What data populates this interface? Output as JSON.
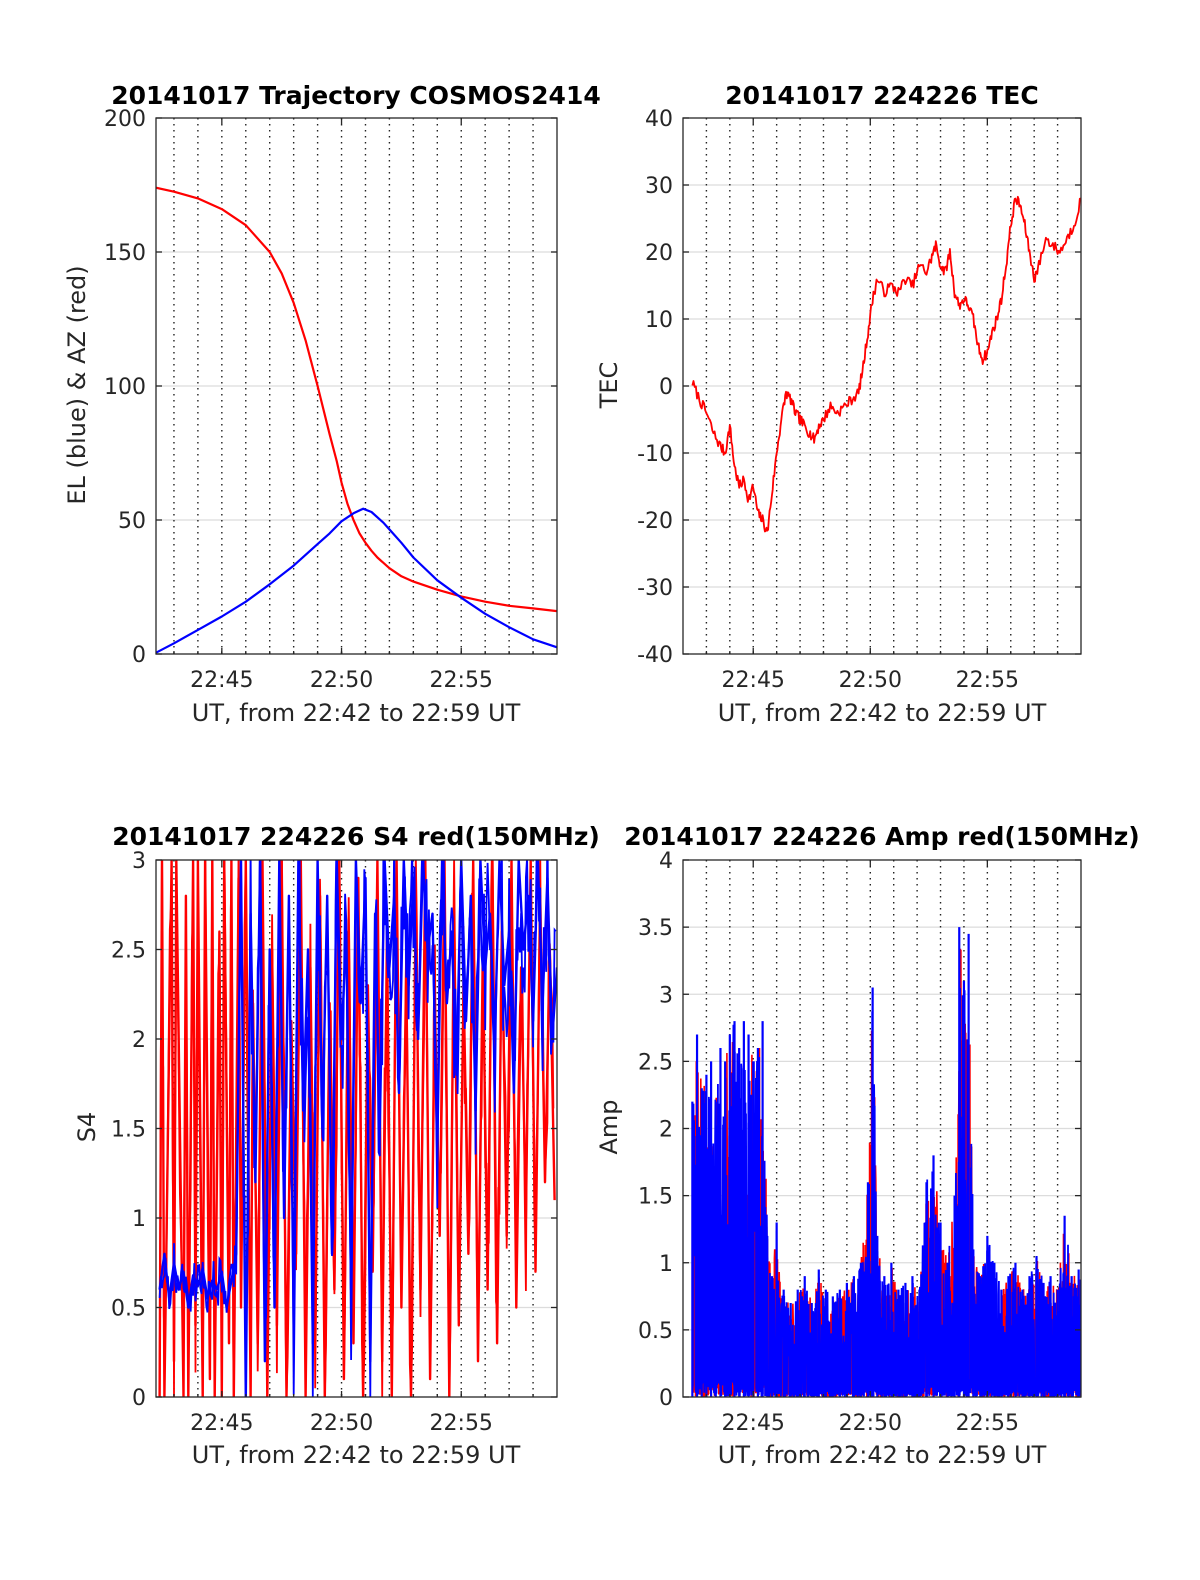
{
  "figure": {
    "x_axis_label": "UT, from 22:42 to 22:59 UT",
    "x_tick_labels": [
      "22:45",
      "22:50",
      "22:55"
    ]
  },
  "colors": {
    "red": "#ff0000",
    "blue": "#0000ff"
  },
  "chart_data": [
    {
      "id": "trajectory",
      "type": "line",
      "title": "20141017 Trajectory COSMOS2414",
      "xlabel": "UT, from 22:42 to 22:59 UT",
      "ylabel": "EL (blue) & AZ (red)",
      "x_unit": "minutes after 22:00 UT",
      "xlim": [
        42.25,
        59.0
      ],
      "ylim": [
        0,
        200
      ],
      "yticks": [
        0,
        50,
        100,
        150,
        200
      ],
      "ytick_labels": [
        "0",
        "50",
        "100",
        "150",
        "200"
      ],
      "xticks": [
        45,
        50,
        55
      ],
      "xtick_labels": [
        "22:45",
        "22:50",
        "22:55"
      ],
      "grid": true,
      "series": [
        {
          "color": "red",
          "x": [
            42.25,
            43,
            44,
            45,
            46,
            47,
            47.5,
            48,
            48.5,
            49,
            49.5,
            49.8,
            50,
            50.25,
            50.5,
            50.75,
            51,
            51.25,
            51.5,
            52,
            52.5,
            53,
            54,
            55,
            56,
            57,
            58,
            59
          ],
          "y": [
            174,
            172.5,
            170,
            166,
            160,
            150,
            142,
            131,
            117,
            100,
            82,
            72,
            64,
            56,
            50,
            45,
            41.5,
            38.5,
            36,
            32,
            29,
            27,
            24,
            21.5,
            19.5,
            18,
            17,
            16
          ]
        },
        {
          "color": "blue",
          "x": [
            42.25,
            43,
            44,
            45,
            46,
            47,
            48,
            49,
            49.5,
            50,
            50.5,
            50.9,
            51.25,
            51.75,
            52,
            52.5,
            53,
            54,
            55,
            56,
            57,
            58,
            59
          ],
          "y": [
            0.5,
            4,
            9,
            14,
            19.5,
            26,
            33,
            41,
            45,
            49.5,
            52.5,
            54.2,
            53,
            49,
            46.5,
            41.5,
            36,
            27.5,
            21,
            15,
            10,
            5.5,
            2.5
          ]
        }
      ]
    },
    {
      "id": "tec",
      "type": "line",
      "title": "20141017 224226 TEC",
      "xlabel": "UT, from 22:42 to 22:59 UT",
      "ylabel": "TEC",
      "x_unit": "minutes after 22:00 UT",
      "xlim": [
        42.0,
        59.0
      ],
      "ylim": [
        -40,
        40
      ],
      "yticks": [
        -40,
        -30,
        -20,
        -10,
        0,
        10,
        20,
        30,
        40
      ],
      "ytick_labels": [
        "-40",
        "-30",
        "-20",
        "-10",
        "0",
        "10",
        "20",
        "30",
        "40"
      ],
      "xticks": [
        45,
        50,
        55
      ],
      "xtick_labels": [
        "22:45",
        "22:50",
        "22:55"
      ],
      "grid": true,
      "series": [
        {
          "color": "red",
          "x": [
            42.4,
            42.7,
            43,
            43.3,
            43.6,
            43.8,
            44,
            44.2,
            44.4,
            44.6,
            44.8,
            45,
            45.2,
            45.4,
            45.6,
            45.8,
            46,
            46.2,
            46.4,
            46.6,
            46.8,
            47,
            47.2,
            47.4,
            47.6,
            47.8,
            48,
            48.3,
            48.6,
            48.9,
            49.2,
            49.5,
            49.7,
            49.9,
            50.1,
            50.3,
            50.6,
            50.9,
            51.2,
            51.5,
            51.8,
            52.1,
            52.4,
            52.6,
            52.8,
            53,
            53.2,
            53.4,
            53.6,
            53.8,
            54,
            54.2,
            54.4,
            54.6,
            54.8,
            55,
            55.2,
            55.4,
            55.6,
            55.8,
            56,
            56.2,
            56.4,
            56.6,
            56.8,
            57,
            57.2,
            57.5,
            57.8,
            58.1,
            58.4,
            58.7,
            59
          ],
          "y": [
            0.5,
            -2,
            -4,
            -7,
            -9,
            -10,
            -6,
            -12,
            -15,
            -14,
            -17,
            -15,
            -19,
            -20,
            -22,
            -16,
            -10,
            -5,
            -1,
            -2,
            -4,
            -5,
            -6,
            -7,
            -8,
            -6,
            -5,
            -3,
            -4,
            -3,
            -2,
            -1,
            3,
            8,
            13,
            16,
            14,
            15,
            14,
            16,
            15,
            18,
            17,
            19,
            21,
            18,
            17,
            20,
            14,
            12,
            13,
            12,
            10,
            6,
            4,
            5,
            8,
            10,
            13,
            18,
            24,
            28,
            27,
            24,
            20,
            16,
            18,
            22,
            21,
            20,
            22,
            24,
            28
          ]
        }
      ]
    },
    {
      "id": "s4",
      "type": "line",
      "title": "20141017 224226 S4 red(150MHz)",
      "xlabel": "UT, from 22:42 to 22:59 UT",
      "ylabel": "S4",
      "x_unit": "minutes after 22:00 UT",
      "xlim": [
        42.25,
        59.0
      ],
      "ylim": [
        0,
        3
      ],
      "yticks": [
        0,
        0.5,
        1,
        1.5,
        2,
        2.5,
        3
      ],
      "ytick_labels": [
        "0",
        "0.5",
        "1",
        "1.5",
        "2",
        "2.5",
        "3"
      ],
      "xticks": [
        45,
        50,
        55
      ],
      "xtick_labels": [
        "22:45",
        "22:50",
        "22:55"
      ],
      "grid": true,
      "series": [
        {
          "color": "red",
          "x": [
            42.4,
            42.5,
            42.6,
            42.9,
            43.0,
            43.1,
            43.4,
            43.5,
            43.6,
            43.8,
            43.9,
            44.0,
            44.2,
            44.3,
            44.5,
            44.6,
            44.7,
            44.9,
            45.0,
            45.1,
            45.3,
            45.4,
            45.5,
            45.7,
            45.8,
            46.0,
            46.2,
            46.3,
            46.5,
            46.7,
            46.9,
            47.1,
            47.3,
            47.5,
            47.7,
            47.9,
            48.1,
            48.3,
            48.5,
            48.7,
            48.9,
            49.1,
            49.3,
            49.5,
            49.7,
            49.9,
            50.1,
            50.3,
            50.5,
            50.7,
            50.9,
            51.1,
            51.3,
            51.5,
            51.7,
            51.9,
            52.1,
            52.3,
            52.5,
            52.7,
            52.9,
            53.1,
            53.3,
            53.5,
            53.7,
            53.9,
            54.1,
            54.3,
            54.5,
            54.7,
            54.9,
            55.1,
            55.3,
            55.5,
            55.7,
            55.9,
            56.1,
            56.3,
            56.5,
            56.7,
            56.9,
            57.1,
            57.3,
            57.5,
            57.7,
            57.9,
            58.1,
            58.3,
            58.5,
            58.7,
            58.9
          ],
          "y": [
            0,
            3,
            0,
            3,
            0.2,
            3,
            0,
            2.8,
            0,
            3,
            0.4,
            3,
            0,
            3,
            0.1,
            3,
            0,
            2.6,
            0,
            3,
            0.3,
            3,
            0,
            2.9,
            0.5,
            3,
            0,
            2.2,
            0.3,
            3,
            0,
            2.5,
            0.4,
            3,
            0,
            2.1,
            0.8,
            3,
            0,
            2.4,
            0.3,
            2.8,
            0,
            2.2,
            0.6,
            3,
            0.1,
            2.5,
            0.3,
            2.9,
            0,
            2.3,
            0.7,
            3,
            0.2,
            2.6,
            0,
            3,
            0.5,
            2.4,
            0,
            2.8,
            0.6,
            3,
            0.1,
            2.2,
            0.9,
            3,
            0,
            2.7,
            0.4,
            2.3,
            0.8,
            3,
            0.2,
            2.5,
            0.6,
            3,
            0.3,
            2.6,
            0.9,
            3,
            0.5,
            2.4,
            1.0,
            3,
            0.7,
            2.8,
            1.2,
            2.5,
            1.1
          ]
        },
        {
          "color": "blue",
          "x": [
            42.4,
            42.6,
            42.8,
            43.0,
            43.2,
            43.4,
            43.6,
            43.8,
            44.0,
            44.2,
            44.4,
            44.6,
            44.8,
            45.0,
            45.2,
            45.4,
            45.6,
            45.8,
            46.0,
            46.2,
            46.4,
            46.6,
            46.8,
            47.0,
            47.2,
            47.4,
            47.6,
            47.8,
            48.0,
            48.2,
            48.4,
            48.6,
            48.8,
            49.0,
            49.2,
            49.4,
            49.6,
            49.8,
            50.0,
            50.2,
            50.4,
            50.6,
            50.8,
            51.0,
            51.2,
            51.4,
            51.6,
            51.8,
            52.0,
            52.2,
            52.4,
            52.6,
            52.8,
            53.0,
            53.2,
            53.4,
            53.6,
            53.8,
            54.0,
            54.2,
            54.4,
            54.6,
            54.8,
            55.0,
            55.2,
            55.4,
            55.6,
            55.8,
            56.0,
            56.2,
            56.4,
            56.6,
            56.8,
            57.0,
            57.2,
            57.4,
            57.6,
            57.8,
            58.0,
            58.2,
            58.4,
            58.6,
            58.8,
            59.0
          ],
          "y": [
            0.6,
            0.8,
            0.55,
            0.75,
            0.6,
            0.7,
            0.5,
            0.68,
            0.62,
            0.72,
            0.55,
            0.65,
            0.6,
            0.7,
            0.5,
            0.65,
            0.8,
            3,
            0,
            2.7,
            1.2,
            3,
            0.2,
            2.5,
            0.5,
            3,
            1.0,
            2.8,
            0.4,
            3,
            1.6,
            2.5,
            0.3,
            3,
            1.5,
            2.8,
            0.8,
            3,
            2.0,
            2.6,
            0.6,
            3,
            2.2,
            2.9,
            0.2,
            2.7,
            1.5,
            3,
            2.4,
            2.8,
            1.7,
            3,
            2.3,
            2.9,
            2.0,
            3,
            2.5,
            2.7,
            1.4,
            3,
            2.2,
            2.6,
            1.8,
            3,
            2.1,
            2.8,
            1.6,
            3,
            2.4,
            2.7,
            2.0,
            3,
            2.3,
            2.6,
            1.7,
            3,
            2.5,
            2.8,
            2.1,
            3,
            2.2,
            2.9,
            2.0,
            2.4
          ]
        }
      ]
    },
    {
      "id": "amp",
      "type": "line",
      "title": "20141017 224226 Amp red(150MHz)",
      "xlabel": "UT, from 22:42 to 22:59 UT",
      "ylabel": "Amp",
      "x_unit": "minutes after 22:00 UT",
      "xlim": [
        42.0,
        59.0
      ],
      "ylim": [
        0,
        4
      ],
      "yticks": [
        0,
        0.5,
        1,
        1.5,
        2,
        2.5,
        3,
        3.5,
        4
      ],
      "ytick_labels": [
        "0",
        "0.5",
        "1",
        "1.5",
        "2",
        "2.5",
        "3",
        "3.5",
        "4"
      ],
      "xticks": [
        45,
        50,
        55
      ],
      "xtick_labels": [
        "22:45",
        "22:50",
        "22:55"
      ],
      "grid": true,
      "envelope": [
        {
          "x": 42.4,
          "y": 2.2
        },
        {
          "x": 42.6,
          "y": 2.7
        },
        {
          "x": 42.8,
          "y": 2.3
        },
        {
          "x": 43.0,
          "y": 2.4
        },
        {
          "x": 43.2,
          "y": 2.5
        },
        {
          "x": 43.4,
          "y": 2.2
        },
        {
          "x": 43.6,
          "y": 2.6
        },
        {
          "x": 43.8,
          "y": 2.5
        },
        {
          "x": 44.0,
          "y": 2.7
        },
        {
          "x": 44.2,
          "y": 2.8
        },
        {
          "x": 44.4,
          "y": 2.6
        },
        {
          "x": 44.6,
          "y": 2.8
        },
        {
          "x": 44.8,
          "y": 2.7
        },
        {
          "x": 45.0,
          "y": 2.5
        },
        {
          "x": 45.2,
          "y": 2.6
        },
        {
          "x": 45.4,
          "y": 2.8
        },
        {
          "x": 45.6,
          "y": 1.2
        },
        {
          "x": 45.8,
          "y": 0.9
        },
        {
          "x": 46.0,
          "y": 1.3
        },
        {
          "x": 46.3,
          "y": 0.8
        },
        {
          "x": 46.6,
          "y": 0.7
        },
        {
          "x": 46.9,
          "y": 0.8
        },
        {
          "x": 47.2,
          "y": 0.9
        },
        {
          "x": 47.5,
          "y": 0.7
        },
        {
          "x": 47.8,
          "y": 0.95
        },
        {
          "x": 48.1,
          "y": 0.8
        },
        {
          "x": 48.4,
          "y": 0.75
        },
        {
          "x": 48.7,
          "y": 0.8
        },
        {
          "x": 49.0,
          "y": 0.85
        },
        {
          "x": 49.3,
          "y": 0.9
        },
        {
          "x": 49.6,
          "y": 1.0
        },
        {
          "x": 49.9,
          "y": 1.6
        },
        {
          "x": 50.1,
          "y": 3.05
        },
        {
          "x": 50.3,
          "y": 1.2
        },
        {
          "x": 50.6,
          "y": 0.9
        },
        {
          "x": 50.9,
          "y": 1.0
        },
        {
          "x": 51.2,
          "y": 0.8
        },
        {
          "x": 51.5,
          "y": 0.85
        },
        {
          "x": 51.8,
          "y": 0.9
        },
        {
          "x": 52.1,
          "y": 0.8
        },
        {
          "x": 52.4,
          "y": 1.6
        },
        {
          "x": 52.7,
          "y": 1.8
        },
        {
          "x": 53.0,
          "y": 1.3
        },
        {
          "x": 53.3,
          "y": 1.0
        },
        {
          "x": 53.6,
          "y": 1.5
        },
        {
          "x": 53.8,
          "y": 3.5
        },
        {
          "x": 54.0,
          "y": 3.1
        },
        {
          "x": 54.2,
          "y": 3.45
        },
        {
          "x": 54.4,
          "y": 1.1
        },
        {
          "x": 54.7,
          "y": 0.9
        },
        {
          "x": 55.0,
          "y": 1.2
        },
        {
          "x": 55.3,
          "y": 1.0
        },
        {
          "x": 55.6,
          "y": 0.8
        },
        {
          "x": 55.9,
          "y": 0.9
        },
        {
          "x": 56.2,
          "y": 1.0
        },
        {
          "x": 56.5,
          "y": 0.8
        },
        {
          "x": 56.8,
          "y": 0.9
        },
        {
          "x": 57.1,
          "y": 1.05
        },
        {
          "x": 57.4,
          "y": 0.85
        },
        {
          "x": 57.7,
          "y": 0.9
        },
        {
          "x": 58.0,
          "y": 0.8
        },
        {
          "x": 58.3,
          "y": 1.35
        },
        {
          "x": 58.6,
          "y": 0.9
        },
        {
          "x": 58.9,
          "y": 0.95
        }
      ],
      "series": [
        {
          "color": "red"
        },
        {
          "color": "blue"
        }
      ]
    }
  ]
}
